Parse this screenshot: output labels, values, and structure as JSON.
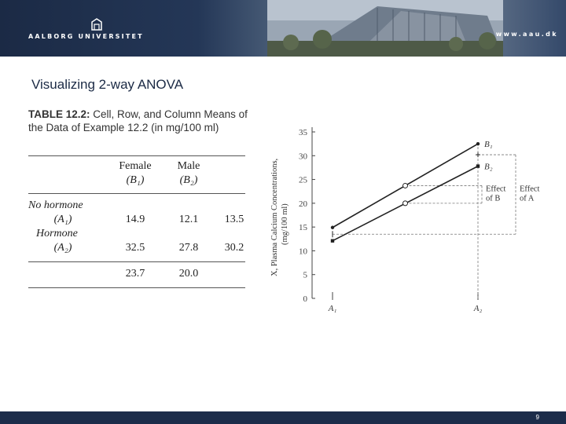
{
  "header": {
    "logo_text": "AALBORG UNIVERSITET",
    "url": "www.aau.dk"
  },
  "slide": {
    "title": "Visualizing 2-way ANOVA",
    "page_number": "9"
  },
  "table": {
    "caption_label": "TABLE 12.2:",
    "caption_text": " Cell, Row, and Column Means of the Data of Example 12.2 (in mg/100 ml)",
    "col_headers": [
      {
        "name": "Female",
        "symbol": "(B₁)"
      },
      {
        "name": "Male",
        "symbol": "(B₂)"
      }
    ],
    "rows": [
      {
        "label": "No hormone",
        "symbol": "(A₁)",
        "values": [
          "14.9",
          "12.1",
          "13.5"
        ]
      },
      {
        "label": "Hormone",
        "symbol": "(A₂)",
        "values": [
          "32.5",
          "27.8",
          "30.2"
        ]
      }
    ],
    "column_means": [
      "23.7",
      "20.0"
    ]
  },
  "chart_data": {
    "type": "line",
    "ylabel": "X, Plasma Calcium Concentrations, (mg/100 ml)",
    "ylabel_line1": "X, Plasma Calcium Concentrations,",
    "ylabel_line2": "(mg/100 ml)",
    "categories": [
      "A₁",
      "A₂"
    ],
    "ylim": [
      0,
      35
    ],
    "yticks": [
      0,
      5,
      10,
      15,
      20,
      25,
      30,
      35
    ],
    "series": [
      {
        "name": "B₁",
        "values": [
          14.9,
          32.5
        ]
      },
      {
        "name": "B₂",
        "values": [
          12.1,
          27.8
        ]
      }
    ],
    "marginal_means": {
      "A": [
        13.5,
        30.2
      ],
      "B": [
        23.7,
        20.0
      ]
    },
    "annotations": {
      "effect_b": [
        "Effect",
        "of B"
      ],
      "effect_a": [
        "Effect",
        "of A"
      ]
    },
    "grid": false
  },
  "colors": {
    "banner": "#1b2a45",
    "footer": "#1c2c4a",
    "title": "#1b2a45",
    "line": "#222222"
  }
}
